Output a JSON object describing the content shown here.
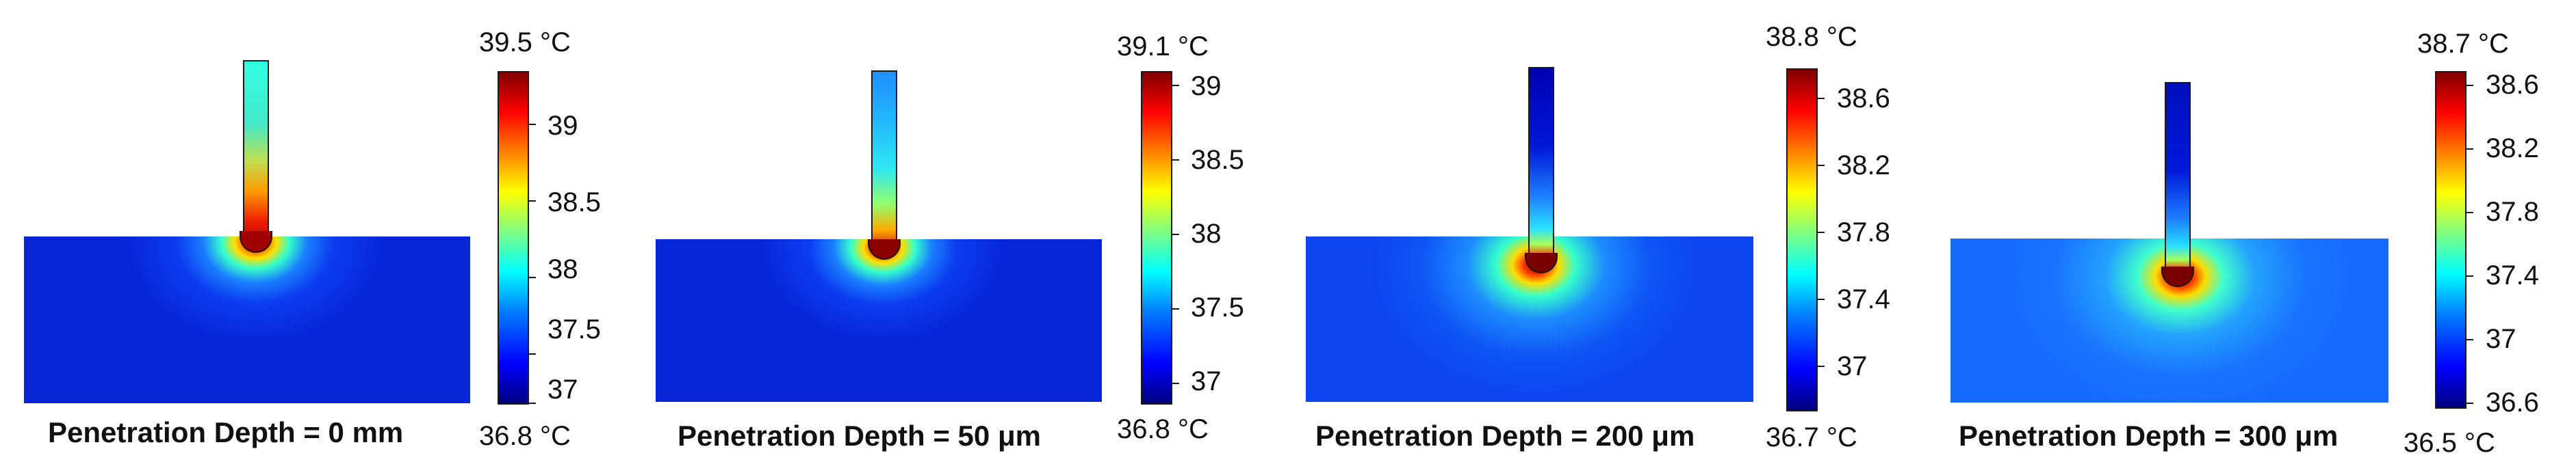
{
  "panels": [
    {
      "caption": "Penetration Depth = 0 mm",
      "max_label": "39.5",
      "min_label": "36.8",
      "unit": "°C",
      "ticks": [
        "39",
        "38.5",
        "38",
        "37.5",
        "37"
      ]
    },
    {
      "caption": "Penetration Depth = 50 μm",
      "max_label": "39.1",
      "min_label": "36.8",
      "unit": "°C",
      "ticks": [
        "39",
        "38.5",
        "38",
        "37.5",
        "37"
      ]
    },
    {
      "caption": "Penetration Depth = 200 μm",
      "max_label": "38.8",
      "min_label": "36.7",
      "unit": "°C",
      "ticks": [
        "38.6",
        "38.2",
        "37.8",
        "37.4",
        "37"
      ]
    },
    {
      "caption": "Penetration Depth = 300 μm",
      "max_label": "38.7",
      "min_label": "36.5",
      "unit": "°C",
      "ticks": [
        "38.6",
        "38.2",
        "37.8",
        "37.4",
        "37",
        "36.6"
      ]
    }
  ]
}
